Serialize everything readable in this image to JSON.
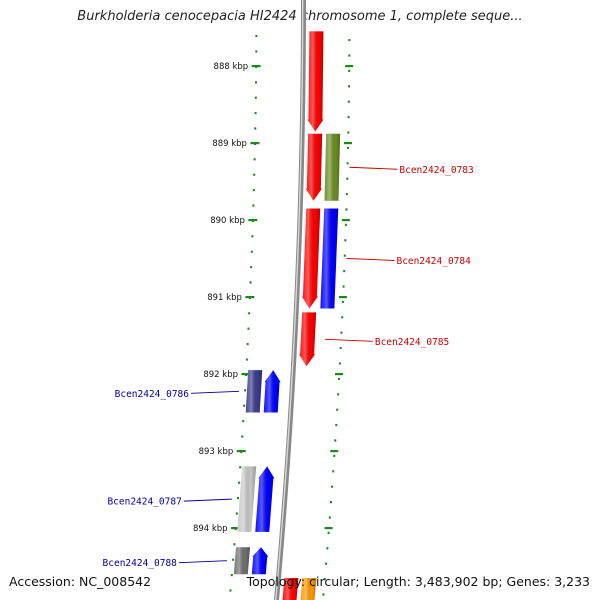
{
  "title": "Burkholderia cenocepacia HI2424 chromosome 1, complete seque...",
  "footer": {
    "accession": "Accession: NC_008542",
    "stats": "Topology: circular; Length: 3,483,902 bp; Genes: 3,233"
  },
  "colors": {
    "forward_label": "#cc0000",
    "reverse_label": "#000099",
    "backbone": "#888888",
    "dots": "#1a8a1a"
  },
  "ticks": [
    {
      "label": "888 kbp",
      "kb": 888
    },
    {
      "label": "889 kbp",
      "kb": 889
    },
    {
      "label": "890 kbp",
      "kb": 890
    },
    {
      "label": "891 kbp",
      "kb": 891
    },
    {
      "label": "892 kbp",
      "kb": 892
    },
    {
      "label": "893 kbp",
      "kb": 893
    },
    {
      "label": "894 kbp",
      "kb": 894
    }
  ],
  "genes": [
    {
      "strand": "forward",
      "ring": "inner",
      "start_kb": 887.55,
      "end_kb": 888.85,
      "color": "#ff0000",
      "arrow": true
    },
    {
      "strand": "forward",
      "ring": "inner",
      "start_kb": 888.88,
      "end_kb": 889.75,
      "color": "#ff0000",
      "arrow": true
    },
    {
      "strand": "forward",
      "ring": "outer",
      "start_kb": 888.88,
      "end_kb": 889.75,
      "color": "#6b8e23",
      "arrow": false,
      "label": "Bcen2424_0783"
    },
    {
      "strand": "forward",
      "ring": "inner",
      "start_kb": 889.85,
      "end_kb": 891.15,
      "color": "#ff0000",
      "arrow": true
    },
    {
      "strand": "forward",
      "ring": "outer",
      "start_kb": 889.85,
      "end_kb": 891.15,
      "color": "#0000ff",
      "arrow": false,
      "label": "Bcen2424_0784"
    },
    {
      "strand": "forward",
      "ring": "inner",
      "start_kb": 891.2,
      "end_kb": 891.9,
      "color": "#ff0000",
      "arrow": true,
      "label": "Bcen2424_0785"
    },
    {
      "strand": "reverse",
      "ring": "outer",
      "start_kb": 891.95,
      "end_kb": 892.5,
      "color": "#3c3c8c",
      "arrow": false,
      "label": "Bcen2424_0786"
    },
    {
      "strand": "reverse",
      "ring": "inner",
      "start_kb": 891.95,
      "end_kb": 892.5,
      "color": "#0000ff",
      "arrow": true
    },
    {
      "strand": "reverse",
      "ring": "outer",
      "start_kb": 893.2,
      "end_kb": 894.05,
      "color": "#c8c8c8",
      "arrow": false,
      "label": "Bcen2424_0787"
    },
    {
      "strand": "reverse",
      "ring": "inner",
      "start_kb": 893.2,
      "end_kb": 894.05,
      "color": "#0000ff",
      "arrow": true
    },
    {
      "strand": "reverse",
      "ring": "outer",
      "start_kb": 894.25,
      "end_kb": 894.6,
      "color": "#707070",
      "arrow": false,
      "label": "Bcen2424_0788"
    },
    {
      "strand": "reverse",
      "ring": "inner",
      "start_kb": 894.25,
      "end_kb": 894.6,
      "color": "#0000ff",
      "arrow": true
    },
    {
      "strand": "forward",
      "ring": "inner",
      "start_kb": 894.65,
      "end_kb": 894.95,
      "color": "#ff0000",
      "arrow": false
    },
    {
      "strand": "forward",
      "ring": "outer",
      "start_kb": 894.65,
      "end_kb": 894.95,
      "color": "#ff9900",
      "arrow": false
    }
  ]
}
